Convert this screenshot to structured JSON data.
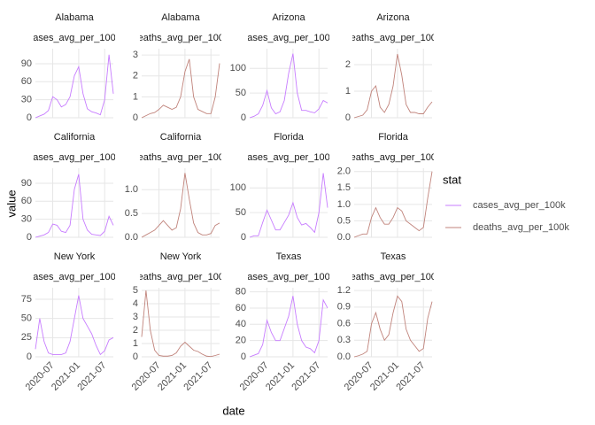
{
  "x_label": "date",
  "y_label": "value",
  "legend_title": "stat",
  "chart_data": [
    {
      "type": "line",
      "title": "Alabama",
      "x": [
        "2020-03",
        "2020-04",
        "2020-05",
        "2020-06",
        "2020-07",
        "2020-08",
        "2020-09",
        "2020-10",
        "2020-11",
        "2020-12",
        "2021-01",
        "2021-02",
        "2021-03",
        "2021-04",
        "2021-05",
        "2021-06",
        "2021-07",
        "2021-08",
        "2021-09"
      ],
      "series": [
        {
          "name": "cases_avg_per_100k",
          "color": "#c77cff",
          "values": [
            0,
            3,
            6,
            12,
            35,
            30,
            18,
            22,
            35,
            70,
            85,
            40,
            15,
            10,
            8,
            5,
            30,
            105,
            40
          ]
        }
      ],
      "xlim": [
        "2020-03",
        "2021-09"
      ],
      "xticks": [
        "2020-07",
        "2021-01",
        "2021-07"
      ],
      "ylim": [
        0,
        115
      ],
      "yticks": [
        0,
        30,
        60,
        90
      ]
    },
    {
      "type": "line",
      "title": "Alabama",
      "x": [
        "2020-03",
        "2020-04",
        "2020-05",
        "2020-06",
        "2020-07",
        "2020-08",
        "2020-09",
        "2020-10",
        "2020-11",
        "2020-12",
        "2021-01",
        "2021-02",
        "2021-03",
        "2021-04",
        "2021-05",
        "2021-06",
        "2021-07",
        "2021-08",
        "2021-09"
      ],
      "series": [
        {
          "name": "deaths_avg_per_100k",
          "color": "#c0837b",
          "values": [
            0,
            0.1,
            0.2,
            0.25,
            0.4,
            0.6,
            0.5,
            0.4,
            0.5,
            1.0,
            2.2,
            2.8,
            1.0,
            0.4,
            0.3,
            0.2,
            0.2,
            1.0,
            2.6
          ]
        }
      ],
      "xlim": [
        "2020-03",
        "2021-09"
      ],
      "xticks": [
        "2020-07",
        "2021-01",
        "2021-07"
      ],
      "ylim": [
        0,
        3.3
      ],
      "yticks": [
        0,
        1,
        2,
        3
      ]
    },
    {
      "type": "line",
      "title": "Arizona",
      "x": [
        "2020-03",
        "2020-04",
        "2020-05",
        "2020-06",
        "2020-07",
        "2020-08",
        "2020-09",
        "2020-10",
        "2020-11",
        "2020-12",
        "2021-01",
        "2021-02",
        "2021-03",
        "2021-04",
        "2021-05",
        "2021-06",
        "2021-07",
        "2021-08",
        "2021-09"
      ],
      "series": [
        {
          "name": "cases_avg_per_100k",
          "color": "#c77cff",
          "values": [
            0,
            3,
            8,
            25,
            55,
            20,
            8,
            12,
            35,
            90,
            130,
            50,
            15,
            15,
            12,
            10,
            18,
            35,
            30
          ]
        }
      ],
      "xlim": [
        "2020-03",
        "2021-09"
      ],
      "xticks": [
        "2020-07",
        "2021-01",
        "2021-07"
      ],
      "ylim": [
        0,
        140
      ],
      "yticks": [
        0,
        50,
        100
      ]
    },
    {
      "type": "line",
      "title": "Arizona",
      "x": [
        "2020-03",
        "2020-04",
        "2020-05",
        "2020-06",
        "2020-07",
        "2020-08",
        "2020-09",
        "2020-10",
        "2020-11",
        "2020-12",
        "2021-01",
        "2021-02",
        "2021-03",
        "2021-04",
        "2021-05",
        "2021-06",
        "2021-07",
        "2021-08",
        "2021-09"
      ],
      "series": [
        {
          "name": "deaths_avg_per_100k",
          "color": "#c0837b",
          "values": [
            0,
            0.05,
            0.1,
            0.3,
            1.0,
            1.2,
            0.4,
            0.2,
            0.5,
            1.2,
            2.4,
            1.6,
            0.5,
            0.2,
            0.2,
            0.15,
            0.15,
            0.4,
            0.6
          ]
        }
      ],
      "xlim": [
        "2020-03",
        "2021-09"
      ],
      "xticks": [
        "2020-07",
        "2021-01",
        "2021-07"
      ],
      "ylim": [
        0,
        2.6
      ],
      "yticks": [
        0,
        1,
        2
      ]
    },
    {
      "type": "line",
      "title": "California",
      "x": [
        "2020-03",
        "2020-04",
        "2020-05",
        "2020-06",
        "2020-07",
        "2020-08",
        "2020-09",
        "2020-10",
        "2020-11",
        "2020-12",
        "2021-01",
        "2021-02",
        "2021-03",
        "2021-04",
        "2021-05",
        "2021-06",
        "2021-07",
        "2021-08",
        "2021-09"
      ],
      "series": [
        {
          "name": "cases_avg_per_100k",
          "color": "#c77cff",
          "values": [
            0,
            2,
            4,
            8,
            22,
            20,
            10,
            8,
            20,
            80,
            105,
            30,
            12,
            5,
            4,
            3,
            10,
            35,
            20
          ]
        }
      ],
      "xlim": [
        "2020-03",
        "2021-09"
      ],
      "xticks": [
        "2020-07",
        "2021-01",
        "2021-07"
      ],
      "ylim": [
        0,
        115
      ],
      "yticks": [
        0,
        30,
        60,
        90
      ]
    },
    {
      "type": "line",
      "title": "California",
      "x": [
        "2020-03",
        "2020-04",
        "2020-05",
        "2020-06",
        "2020-07",
        "2020-08",
        "2020-09",
        "2020-10",
        "2020-11",
        "2020-12",
        "2021-01",
        "2021-02",
        "2021-03",
        "2021-04",
        "2021-05",
        "2021-06",
        "2021-07",
        "2021-08",
        "2021-09"
      ],
      "series": [
        {
          "name": "deaths_avg_per_100k",
          "color": "#c0837b",
          "values": [
            0,
            0.05,
            0.1,
            0.15,
            0.25,
            0.35,
            0.25,
            0.15,
            0.2,
            0.6,
            1.35,
            0.8,
            0.3,
            0.1,
            0.05,
            0.05,
            0.08,
            0.25,
            0.3
          ]
        }
      ],
      "xlim": [
        "2020-03",
        "2021-09"
      ],
      "xticks": [
        "2020-07",
        "2021-01",
        "2021-07"
      ],
      "ylim": [
        0,
        1.45
      ],
      "yticks": [
        {
          "value": 0,
          "label": "0.0"
        },
        0.5,
        {
          "value": 1,
          "label": "1.0"
        }
      ]
    },
    {
      "type": "line",
      "title": "Florida",
      "x": [
        "2020-03",
        "2020-04",
        "2020-05",
        "2020-06",
        "2020-07",
        "2020-08",
        "2020-09",
        "2020-10",
        "2020-11",
        "2020-12",
        "2021-01",
        "2021-02",
        "2021-03",
        "2021-04",
        "2021-05",
        "2021-06",
        "2021-07",
        "2021-08",
        "2021-09"
      ],
      "series": [
        {
          "name": "cases_avg_per_100k",
          "color": "#c77cff",
          "values": [
            0,
            3,
            3,
            30,
            55,
            35,
            15,
            15,
            30,
            45,
            70,
            40,
            25,
            28,
            20,
            10,
            50,
            130,
            60
          ]
        }
      ],
      "xlim": [
        "2020-03",
        "2021-09"
      ],
      "xticks": [
        "2020-07",
        "2021-01",
        "2021-07"
      ],
      "ylim": [
        0,
        140
      ],
      "yticks": [
        0,
        50,
        100
      ]
    },
    {
      "type": "line",
      "title": "Florida",
      "x": [
        "2020-03",
        "2020-04",
        "2020-05",
        "2020-06",
        "2020-07",
        "2020-08",
        "2020-09",
        "2020-10",
        "2020-11",
        "2020-12",
        "2021-01",
        "2021-02",
        "2021-03",
        "2021-04",
        "2021-05",
        "2021-06",
        "2021-07",
        "2021-08",
        "2021-09"
      ],
      "series": [
        {
          "name": "deaths_avg_per_100k",
          "color": "#c0837b",
          "values": [
            0,
            0.05,
            0.1,
            0.1,
            0.6,
            0.9,
            0.6,
            0.4,
            0.4,
            0.6,
            0.9,
            0.8,
            0.5,
            0.4,
            0.3,
            0.2,
            0.3,
            1.2,
            2.0
          ]
        }
      ],
      "xlim": [
        "2020-03",
        "2021-09"
      ],
      "xticks": [
        "2020-07",
        "2021-01",
        "2021-07"
      ],
      "ylim": [
        0,
        2.1
      ],
      "yticks": [
        {
          "value": 0,
          "label": "0.0"
        },
        0.5,
        {
          "value": 1,
          "label": "1.0"
        },
        1.5,
        {
          "value": 2,
          "label": "2.0"
        }
      ]
    },
    {
      "type": "line",
      "title": "New York",
      "x": [
        "2020-03",
        "2020-04",
        "2020-05",
        "2020-06",
        "2020-07",
        "2020-08",
        "2020-09",
        "2020-10",
        "2020-11",
        "2020-12",
        "2021-01",
        "2021-02",
        "2021-03",
        "2021-04",
        "2021-05",
        "2021-06",
        "2021-07",
        "2021-08",
        "2021-09"
      ],
      "series": [
        {
          "name": "cases_avg_per_100k",
          "color": "#c77cff",
          "values": [
            10,
            50,
            20,
            5,
            3,
            3,
            3,
            5,
            20,
            50,
            80,
            50,
            40,
            30,
            15,
            3,
            8,
            22,
            25
          ]
        }
      ],
      "xlim": [
        "2020-03",
        "2021-09"
      ],
      "xticks": [
        "2020-07",
        "2021-01",
        "2021-07"
      ],
      "ylim": [
        0,
        90
      ],
      "yticks": [
        0,
        25,
        50,
        75
      ]
    },
    {
      "type": "line",
      "title": "New York",
      "x": [
        "2020-03",
        "2020-04",
        "2020-05",
        "2020-06",
        "2020-07",
        "2020-08",
        "2020-09",
        "2020-10",
        "2020-11",
        "2020-12",
        "2021-01",
        "2021-02",
        "2021-03",
        "2021-04",
        "2021-05",
        "2021-06",
        "2021-07",
        "2021-08",
        "2021-09"
      ],
      "series": [
        {
          "name": "deaths_avg_per_100k",
          "color": "#c0837b",
          "values": [
            1.5,
            5,
            2,
            0.5,
            0.1,
            0.05,
            0.05,
            0.1,
            0.3,
            0.8,
            1.1,
            0.8,
            0.5,
            0.4,
            0.2,
            0.05,
            0.02,
            0.1,
            0.2
          ]
        }
      ],
      "xlim": [
        "2020-03",
        "2021-09"
      ],
      "xticks": [
        "2020-07",
        "2021-01",
        "2021-07"
      ],
      "ylim": [
        0,
        5.2
      ],
      "yticks": [
        0,
        1,
        2,
        3,
        4,
        5
      ]
    },
    {
      "type": "line",
      "title": "Texas",
      "x": [
        "2020-03",
        "2020-04",
        "2020-05",
        "2020-06",
        "2020-07",
        "2020-08",
        "2020-09",
        "2020-10",
        "2020-11",
        "2020-12",
        "2021-01",
        "2021-02",
        "2021-03",
        "2021-04",
        "2021-05",
        "2021-06",
        "2021-07",
        "2021-08",
        "2021-09"
      ],
      "series": [
        {
          "name": "cases_avg_per_100k",
          "color": "#c77cff",
          "values": [
            0,
            2,
            4,
            15,
            45,
            30,
            20,
            20,
            35,
            50,
            75,
            40,
            20,
            12,
            10,
            5,
            20,
            70,
            60
          ]
        }
      ],
      "xlim": [
        "2020-03",
        "2021-09"
      ],
      "xticks": [
        "2020-07",
        "2021-01",
        "2021-07"
      ],
      "ylim": [
        0,
        85
      ],
      "yticks": [
        0,
        20,
        40,
        60,
        80
      ]
    },
    {
      "type": "line",
      "title": "Texas",
      "x": [
        "2020-03",
        "2020-04",
        "2020-05",
        "2020-06",
        "2020-07",
        "2020-08",
        "2020-09",
        "2020-10",
        "2020-11",
        "2020-12",
        "2021-01",
        "2021-02",
        "2021-03",
        "2021-04",
        "2021-05",
        "2021-06",
        "2021-07",
        "2021-08",
        "2021-09"
      ],
      "series": [
        {
          "name": "deaths_avg_per_100k",
          "color": "#c0837b",
          "values": [
            0,
            0.02,
            0.05,
            0.1,
            0.6,
            0.8,
            0.5,
            0.3,
            0.4,
            0.8,
            1.1,
            1.0,
            0.5,
            0.3,
            0.2,
            0.1,
            0.15,
            0.7,
            1.0
          ]
        }
      ],
      "xlim": [
        "2020-03",
        "2021-09"
      ],
      "xticks": [
        "2020-07",
        "2021-01",
        "2021-07"
      ],
      "ylim": [
        0,
        1.25
      ],
      "yticks": [
        {
          "value": 0,
          "label": "0.0"
        },
        0.3,
        0.6,
        0.9,
        1.2
      ]
    }
  ]
}
